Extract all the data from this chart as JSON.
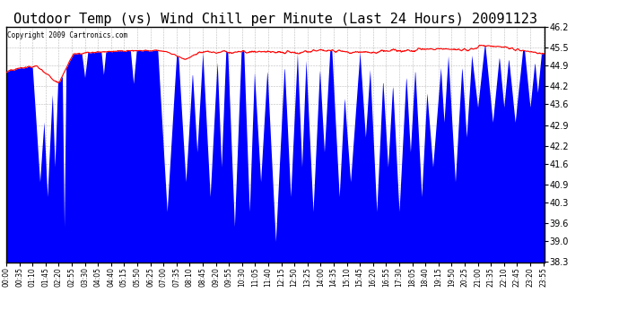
{
  "title": "Outdoor Temp (vs) Wind Chill per Minute (Last 24 Hours) 20091123",
  "copyright": "Copyright 2009 Cartronics.com",
  "y_ticks": [
    38.3,
    39.0,
    39.6,
    40.3,
    40.9,
    41.6,
    42.2,
    42.9,
    43.6,
    44.2,
    44.9,
    45.5,
    46.2
  ],
  "ylim": [
    38.3,
    46.2
  ],
  "background_color": "#ffffff",
  "plot_bg_color": "#ffffff",
  "grid_color": "#aaaaaa",
  "line_color_red": "#ff0000",
  "fill_color_blue": "#0000ff",
  "title_fontsize": 11,
  "x_tick_interval_minutes": 35,
  "total_minutes": 1440,
  "figwidth": 6.9,
  "figheight": 3.75,
  "dpi": 100
}
